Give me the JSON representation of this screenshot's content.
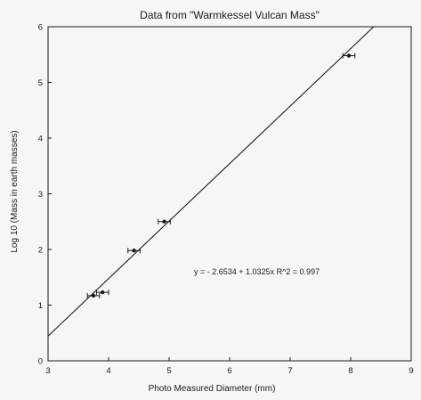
{
  "chart_data": {
    "type": "scatter",
    "title": "Data from \"Warmkessel Vulcan Mass\"",
    "xlabel": "Photo Measured Diameter (mm)",
    "ylabel": "Log 10  (Mass in earth  masses)",
    "xlim": [
      3,
      9
    ],
    "ylim": [
      0,
      6
    ],
    "xticks": [
      "3",
      "4",
      "5",
      "6",
      "7",
      "8",
      "9"
    ],
    "yticks": [
      "0",
      "1",
      "2",
      "3",
      "4",
      "5",
      "6"
    ],
    "grid": false,
    "series": [
      {
        "points": [
          {
            "x": 3.75,
            "y": 1.17,
            "xerr": 0.1
          },
          {
            "x": 3.9,
            "y": 1.23,
            "xerr": 0.1
          },
          {
            "x": 4.42,
            "y": 1.98,
            "xerr": 0.1
          },
          {
            "x": 4.92,
            "y": 2.5,
            "xerr": 0.1
          },
          {
            "x": 7.97,
            "y": 5.48,
            "xerr": 0.1
          }
        ]
      }
    ],
    "fit": {
      "intercept": -2.6534,
      "slope": 1.0325,
      "label": "y = - 2.6534 + 1.0325x    R^2 = 0.997"
    },
    "colors": {
      "ink": "#1a1a1a",
      "background": "#f6f6f4"
    }
  }
}
